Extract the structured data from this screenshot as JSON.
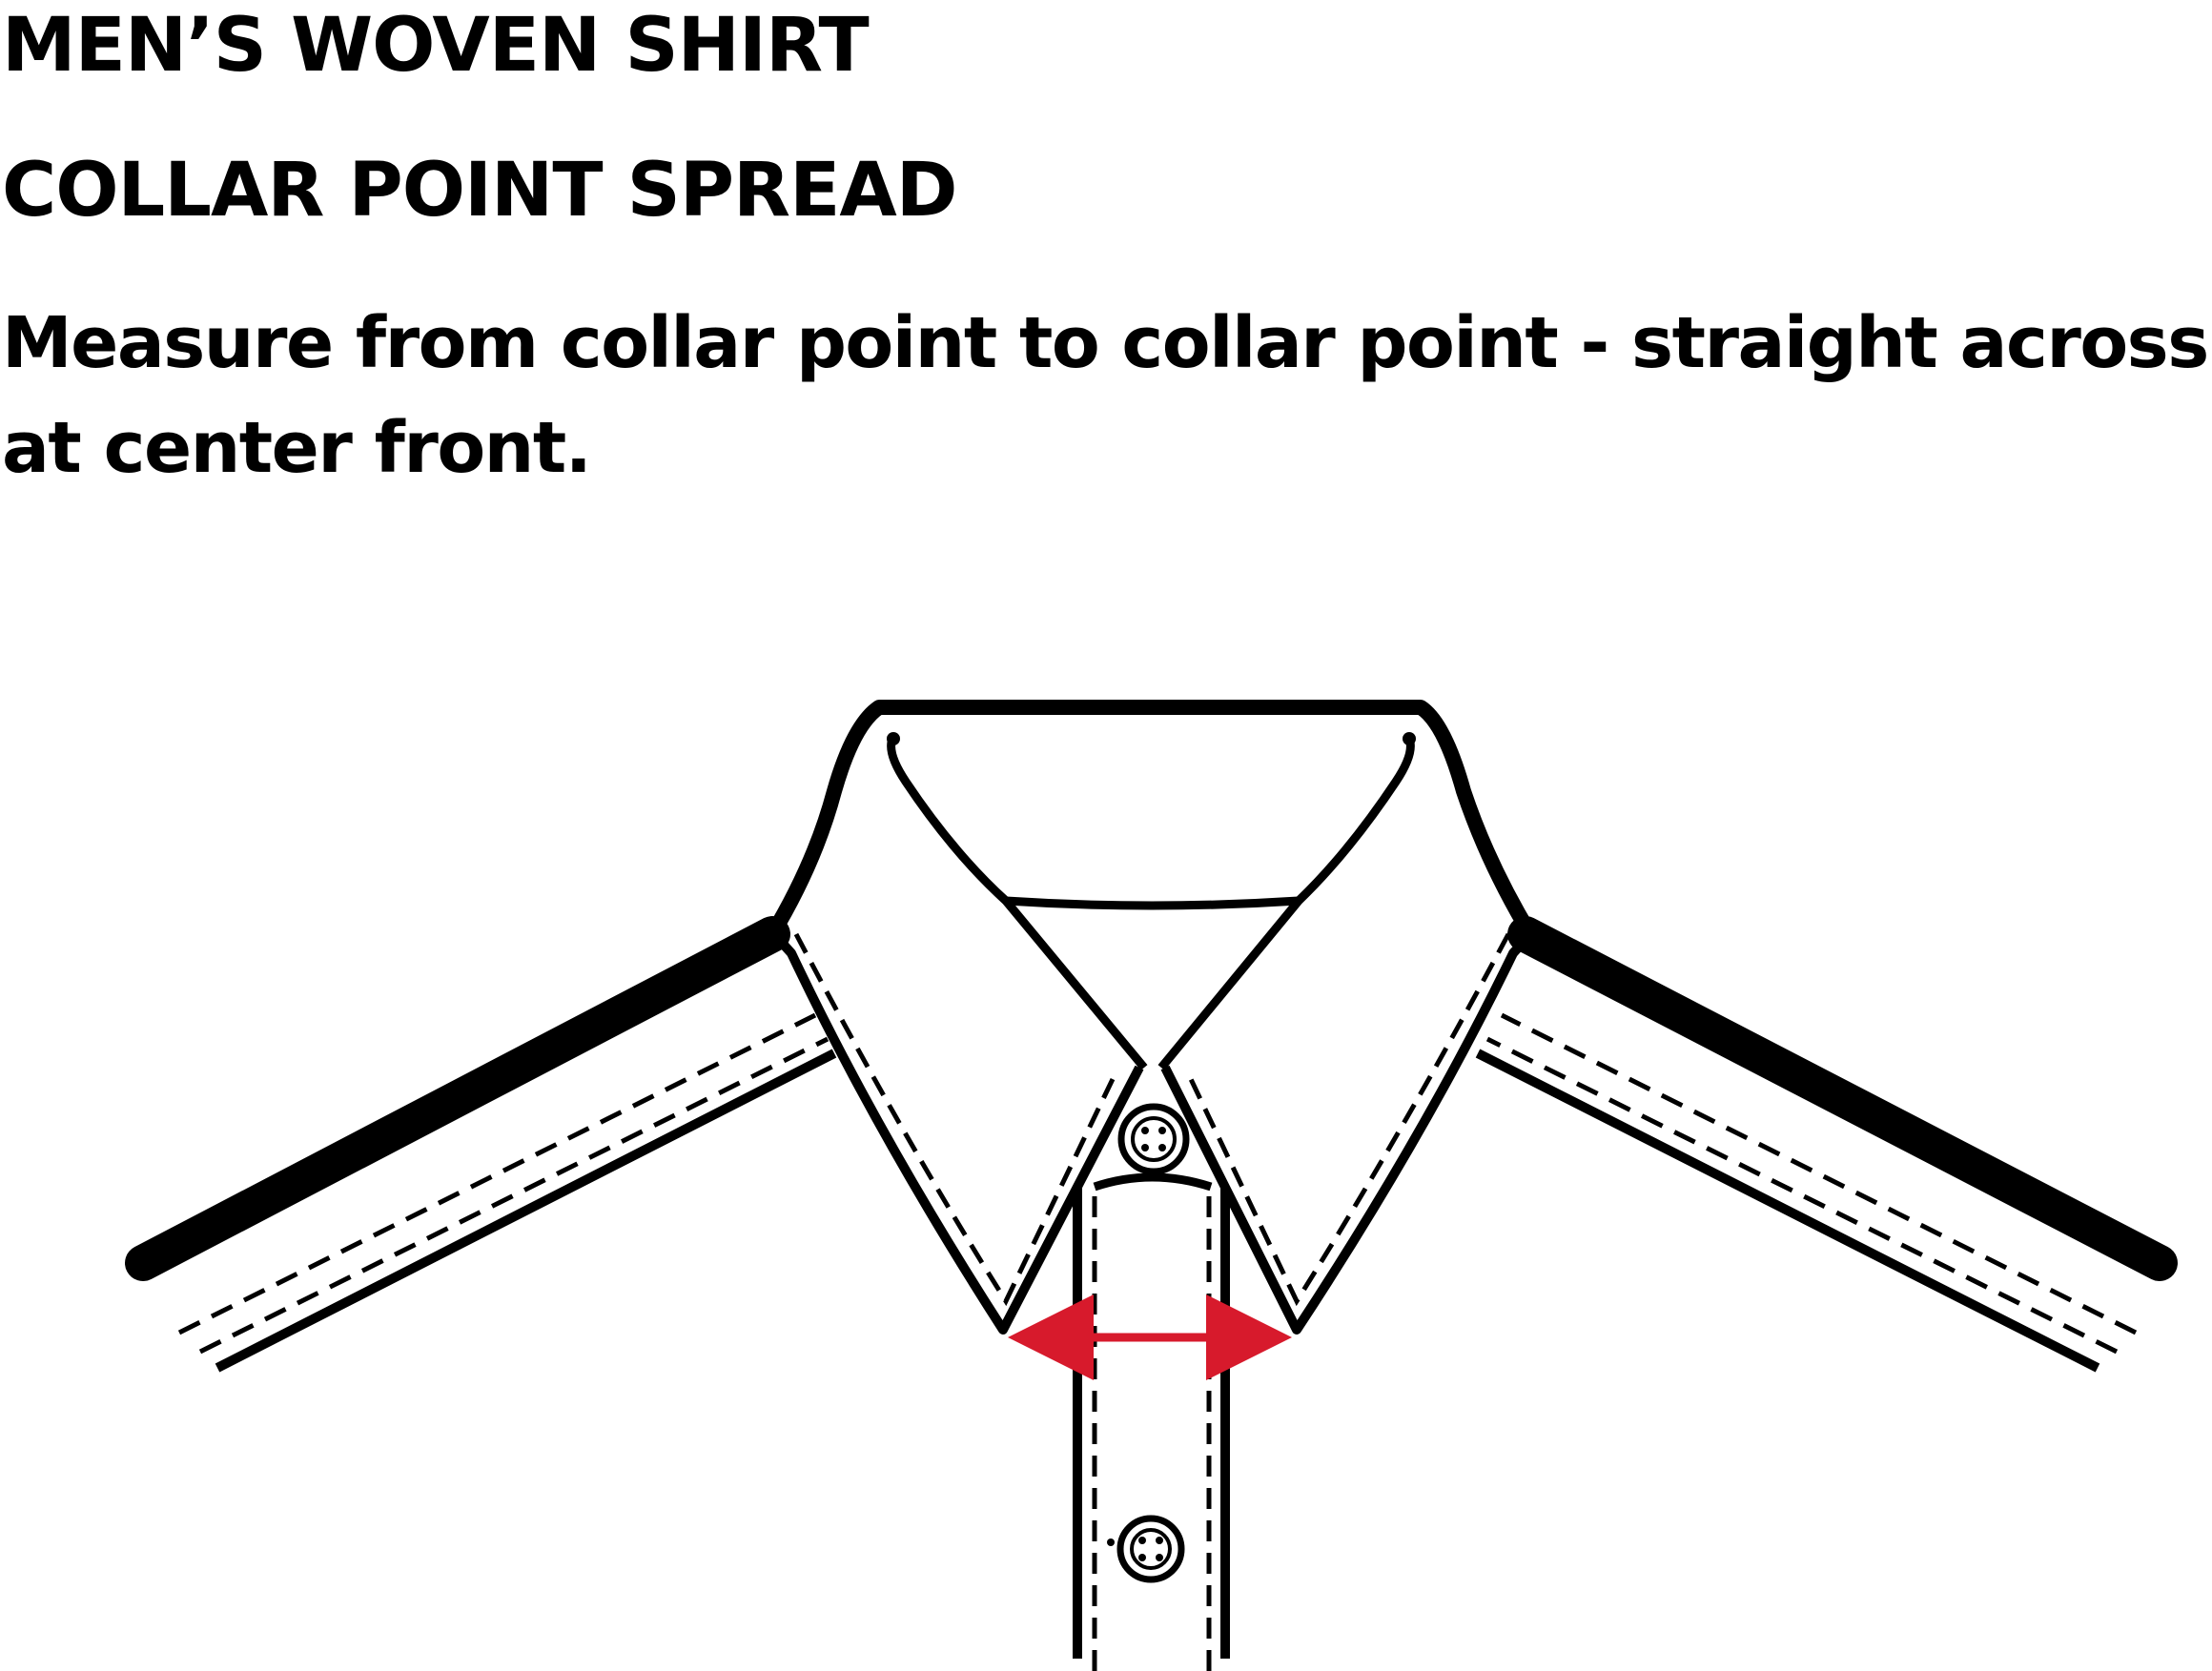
{
  "header": {
    "title": "MEN’S WOVEN SHIRT",
    "subtitle": "COLLAR POINT SPREAD",
    "instruction": "Measure from collar point to collar point - straight across at center front."
  },
  "diagram": {
    "subject": "shirt collar",
    "measurement": "collar point spread",
    "arrow_color": "#d71a2c",
    "line_color": "#000000"
  }
}
